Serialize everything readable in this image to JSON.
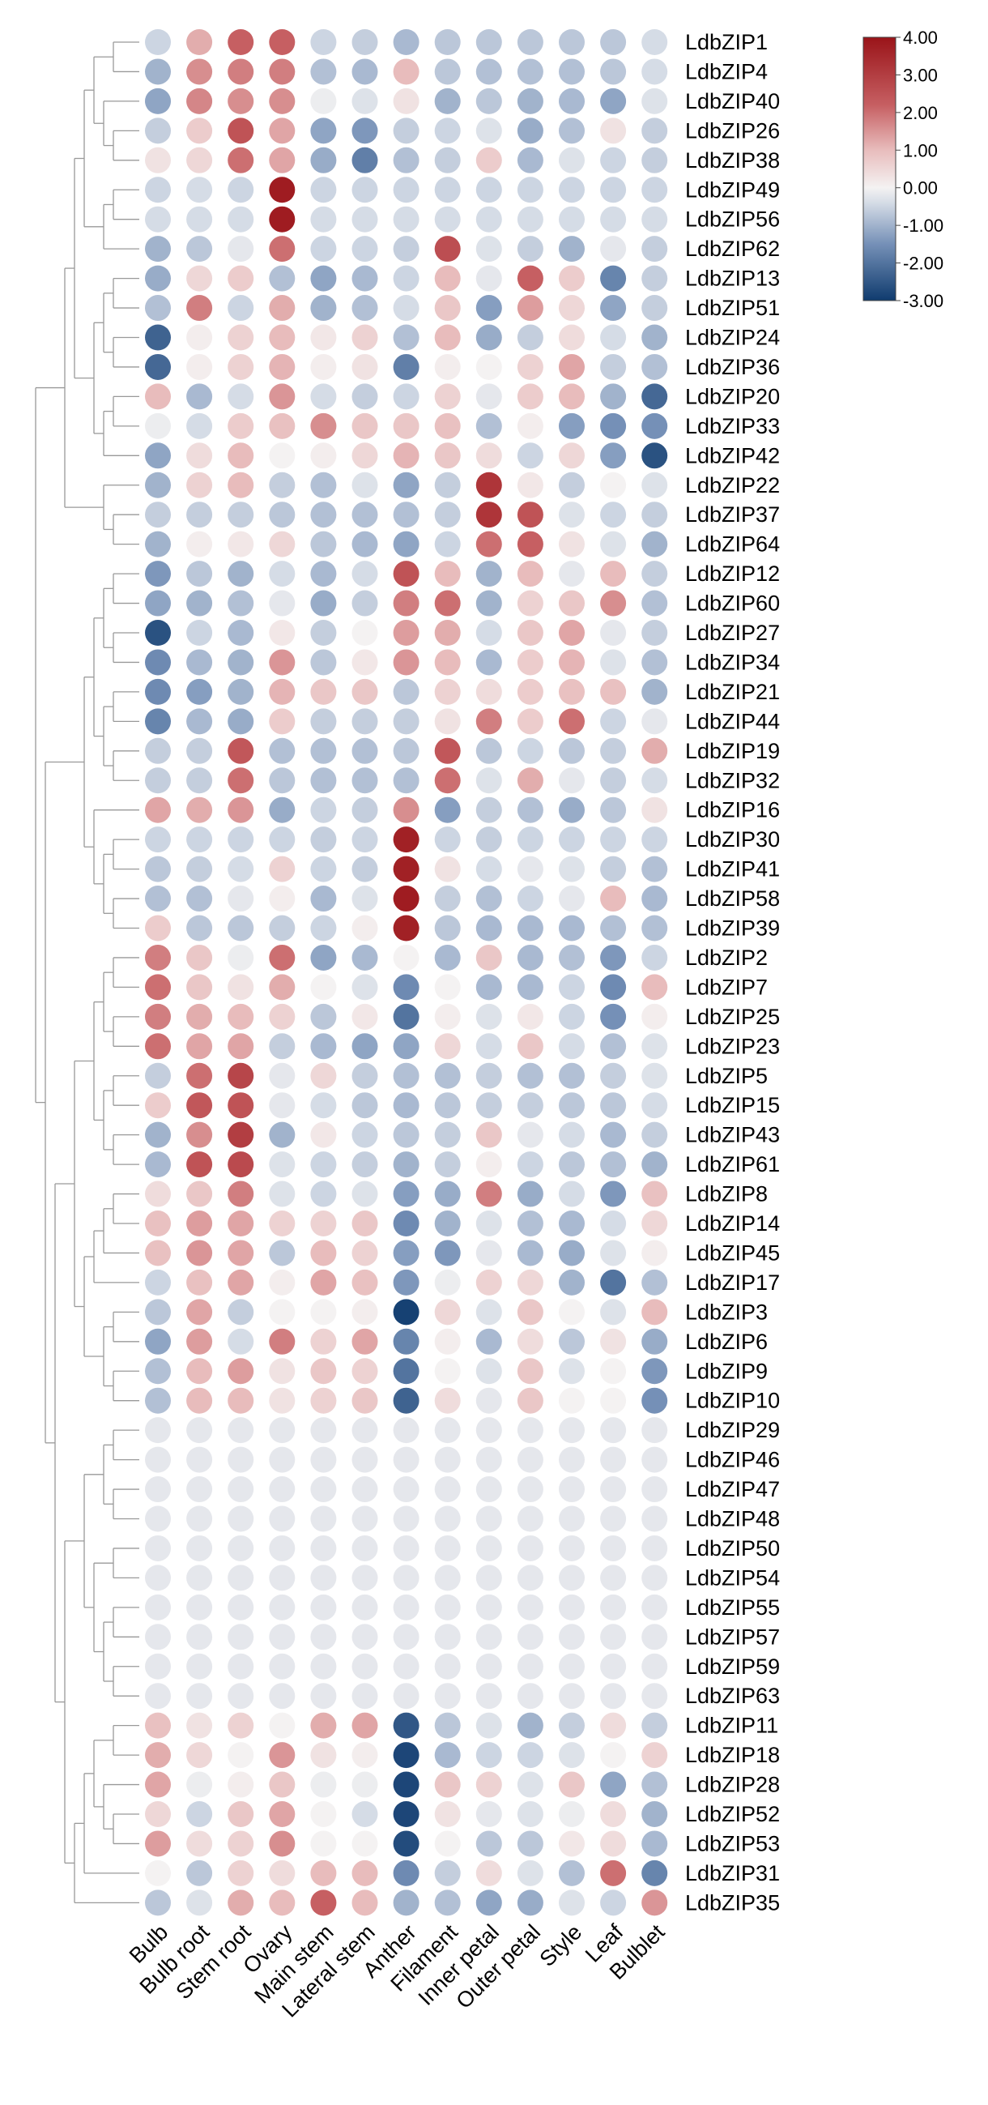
{
  "chart_data": {
    "type": "dot_heatmap",
    "rows": [
      "LdbZIP1",
      "LdbZIP4",
      "LdbZIP40",
      "LdbZIP26",
      "LdbZIP38",
      "LdbZIP49",
      "LdbZIP56",
      "LdbZIP62",
      "LdbZIP13",
      "LdbZIP51",
      "LdbZIP24",
      "LdbZIP36",
      "LdbZIP20",
      "LdbZIP33",
      "LdbZIP42",
      "LdbZIP22",
      "LdbZIP37",
      "LdbZIP64",
      "LdbZIP12",
      "LdbZIP60",
      "LdbZIP27",
      "LdbZIP34",
      "LdbZIP21",
      "LdbZIP44",
      "LdbZIP19",
      "LdbZIP32",
      "LdbZIP16",
      "LdbZIP30",
      "LdbZIP41",
      "LdbZIP58",
      "LdbZIP39",
      "LdbZIP2",
      "LdbZIP7",
      "LdbZIP25",
      "LdbZIP23",
      "LdbZIP5",
      "LdbZIP15",
      "LdbZIP43",
      "LdbZIP61",
      "LdbZIP8",
      "LdbZIP14",
      "LdbZIP45",
      "LdbZIP17",
      "LdbZIP3",
      "LdbZIP6",
      "LdbZIP9",
      "LdbZIP10",
      "LdbZIP29",
      "LdbZIP46",
      "LdbZIP47",
      "LdbZIP48",
      "LdbZIP50",
      "LdbZIP54",
      "LdbZIP55",
      "LdbZIP57",
      "LdbZIP59",
      "LdbZIP63",
      "LdbZIP11",
      "LdbZIP18",
      "LdbZIP28",
      "LdbZIP52",
      "LdbZIP53",
      "LdbZIP31",
      "LdbZIP35"
    ],
    "columns": [
      "Bulb",
      "Bulb root",
      "Stem root",
      "Ovary",
      "Main stem",
      "Lateral stem",
      "Anther",
      "Filament",
      "Inner petal",
      "Outer petal",
      "Style",
      "Leaf",
      "Bulblet"
    ],
    "values": [
      [
        -0.5,
        1.2,
        2.2,
        2.2,
        -0.5,
        -0.6,
        -0.9,
        -0.7,
        -0.7,
        -0.7,
        -0.7,
        -0.7,
        -0.4
      ],
      [
        -1.0,
        1.6,
        1.8,
        1.8,
        -0.8,
        -0.9,
        1.0,
        -0.7,
        -0.8,
        -0.8,
        -0.8,
        -0.7,
        -0.4
      ],
      [
        -1.2,
        1.7,
        1.6,
        1.6,
        -0.1,
        -0.3,
        0.3,
        -1.0,
        -0.7,
        -1.0,
        -0.9,
        -1.2,
        -0.3
      ],
      [
        -0.6,
        0.7,
        2.5,
        1.3,
        -1.2,
        -1.4,
        -0.6,
        -0.5,
        -0.3,
        -1.1,
        -0.8,
        0.3,
        -0.6
      ],
      [
        0.3,
        0.5,
        2.0,
        1.3,
        -1.1,
        -1.8,
        -0.8,
        -0.6,
        0.7,
        -0.9,
        -0.3,
        -0.5,
        -0.6
      ],
      [
        -0.5,
        -0.4,
        -0.5,
        3.8,
        -0.5,
        -0.5,
        -0.5,
        -0.5,
        -0.5,
        -0.5,
        -0.5,
        -0.5,
        -0.5
      ],
      [
        -0.4,
        -0.4,
        -0.4,
        3.8,
        -0.4,
        -0.4,
        -0.4,
        -0.4,
        -0.4,
        -0.4,
        -0.4,
        -0.4,
        -0.4
      ],
      [
        -1.0,
        -0.7,
        -0.2,
        2.0,
        -0.5,
        -0.5,
        -0.6,
        2.6,
        -0.3,
        -0.6,
        -1.0,
        -0.2,
        -0.6
      ],
      [
        -1.1,
        0.5,
        0.7,
        -0.8,
        -1.2,
        -0.9,
        -0.5,
        1.0,
        -0.2,
        2.2,
        0.7,
        -1.7,
        -0.6
      ],
      [
        -0.8,
        1.8,
        -0.5,
        1.2,
        -1.0,
        -0.8,
        -0.4,
        0.8,
        -1.3,
        1.4,
        0.5,
        -1.2,
        -0.6
      ],
      [
        -2.3,
        0.1,
        0.6,
        1.0,
        0.2,
        0.6,
        -0.8,
        1.0,
        -1.1,
        -0.6,
        0.4,
        -0.4,
        -1.0
      ],
      [
        -2.2,
        0.1,
        0.6,
        1.1,
        0.1,
        0.3,
        -1.8,
        0.1,
        0.0,
        0.6,
        1.3,
        -0.6,
        -0.8
      ],
      [
        1.0,
        -0.9,
        -0.4,
        1.5,
        -0.4,
        -0.6,
        -0.5,
        0.6,
        -0.2,
        0.7,
        1.0,
        -1.0,
        -2.2
      ],
      [
        -0.1,
        -0.4,
        0.7,
        0.9,
        1.6,
        0.8,
        0.8,
        0.9,
        -0.8,
        0.1,
        -1.3,
        -1.5,
        -1.5
      ],
      [
        -1.2,
        0.4,
        1.0,
        0.0,
        0.1,
        0.5,
        1.1,
        0.8,
        0.4,
        -0.5,
        0.5,
        -1.3,
        -2.6
      ],
      [
        -1.0,
        0.6,
        1.0,
        -0.6,
        -0.8,
        -0.3,
        -1.2,
        -0.6,
        3.2,
        0.2,
        -0.6,
        0.0,
        -0.3
      ],
      [
        -0.6,
        -0.6,
        -0.6,
        -0.7,
        -0.8,
        -0.8,
        -0.8,
        -0.6,
        3.2,
        2.5,
        -0.3,
        -0.5,
        -0.6
      ],
      [
        -1.0,
        0.1,
        0.2,
        0.5,
        -0.7,
        -0.9,
        -1.2,
        -0.5,
        2.0,
        2.2,
        0.3,
        -0.3,
        -1.0
      ],
      [
        -1.4,
        -0.7,
        -1.0,
        -0.4,
        -0.9,
        -0.4,
        2.5,
        1.0,
        -1.0,
        1.0,
        -0.2,
        1.0,
        -0.6
      ],
      [
        -1.2,
        -1.0,
        -0.8,
        -0.2,
        -1.1,
        -0.6,
        1.8,
        2.0,
        -1.0,
        0.6,
        0.8,
        1.6,
        -0.8
      ],
      [
        -2.6,
        -0.5,
        -0.9,
        0.2,
        -0.6,
        0.0,
        1.4,
        1.2,
        -0.4,
        0.8,
        1.3,
        -0.2,
        -0.6
      ],
      [
        -1.6,
        -0.9,
        -1.0,
        1.5,
        -0.7,
        0.2,
        1.5,
        1.0,
        -0.9,
        0.7,
        1.1,
        -0.3,
        -0.8
      ],
      [
        -1.6,
        -1.3,
        -1.0,
        1.1,
        0.8,
        0.8,
        -0.7,
        0.6,
        0.4,
        0.7,
        0.9,
        0.9,
        -1.0
      ],
      [
        -1.7,
        -0.9,
        -1.1,
        0.7,
        -0.6,
        -0.6,
        -0.6,
        0.3,
        1.8,
        0.7,
        2.0,
        -0.5,
        -0.2
      ],
      [
        -0.6,
        -0.6,
        2.4,
        -0.8,
        -0.8,
        -0.8,
        -0.7,
        2.4,
        -0.7,
        -0.5,
        -0.7,
        -0.6,
        1.2
      ],
      [
        -0.6,
        -0.6,
        2.0,
        -0.7,
        -0.8,
        -0.8,
        -0.8,
        2.0,
        -0.3,
        1.2,
        -0.2,
        -0.6,
        -0.4
      ],
      [
        1.3,
        1.2,
        1.5,
        -1.1,
        -0.5,
        -0.6,
        1.6,
        -1.3,
        -0.6,
        -0.8,
        -1.1,
        -0.7,
        0.3
      ],
      [
        -0.5,
        -0.5,
        -0.5,
        -0.5,
        -0.6,
        -0.5,
        3.7,
        -0.5,
        -0.6,
        -0.5,
        -0.5,
        -0.5,
        -0.5
      ],
      [
        -0.7,
        -0.6,
        -0.4,
        0.6,
        -0.5,
        -0.6,
        3.7,
        0.3,
        -0.4,
        -0.2,
        -0.3,
        -0.6,
        -0.8
      ],
      [
        -0.8,
        -0.8,
        -0.2,
        0.1,
        -0.9,
        -0.3,
        3.8,
        -0.6,
        -0.8,
        -0.5,
        -0.2,
        1.0,
        -0.9
      ],
      [
        0.7,
        -0.7,
        -0.7,
        -0.6,
        -0.5,
        0.1,
        3.7,
        -0.7,
        -0.9,
        -0.9,
        -0.9,
        -0.8,
        -0.8
      ],
      [
        1.8,
        0.8,
        -0.1,
        2.0,
        -1.2,
        -0.9,
        0.0,
        -0.9,
        0.8,
        -0.9,
        -0.8,
        -1.4,
        -0.5
      ],
      [
        2.0,
        0.8,
        0.3,
        1.2,
        0.0,
        -0.3,
        -1.6,
        0.0,
        -0.9,
        -0.9,
        -0.5,
        -1.6,
        1.0
      ],
      [
        1.8,
        1.2,
        1.0,
        0.6,
        -0.7,
        0.2,
        -2.0,
        0.1,
        -0.3,
        0.2,
        -0.5,
        -1.5,
        0.1
      ],
      [
        2.0,
        1.3,
        1.3,
        -0.6,
        -0.9,
        -1.2,
        -1.2,
        0.5,
        -0.4,
        0.8,
        -0.4,
        -0.8,
        -0.3
      ],
      [
        -0.6,
        2.0,
        2.8,
        -0.2,
        0.5,
        -0.6,
        -0.8,
        -0.8,
        -0.6,
        -0.8,
        -0.8,
        -0.6,
        -0.3
      ],
      [
        0.7,
        2.4,
        2.5,
        -0.2,
        -0.4,
        -0.7,
        -0.9,
        -0.7,
        -0.6,
        -0.6,
        -0.7,
        -0.7,
        -0.4
      ],
      [
        -1.0,
        1.6,
        3.0,
        -1.0,
        0.2,
        -0.5,
        -0.7,
        -0.6,
        0.8,
        -0.2,
        -0.4,
        -0.9,
        -0.6
      ],
      [
        -0.9,
        2.5,
        2.7,
        -0.3,
        -0.5,
        -0.6,
        -1.0,
        -0.6,
        0.1,
        -0.5,
        -0.7,
        -0.8,
        -1.0
      ],
      [
        0.4,
        0.8,
        1.8,
        -0.3,
        -0.5,
        -0.3,
        -1.3,
        -1.1,
        1.8,
        -1.1,
        -0.4,
        -1.4,
        0.9
      ],
      [
        0.9,
        1.4,
        1.3,
        0.6,
        0.6,
        0.8,
        -1.6,
        -1.0,
        -0.3,
        -0.8,
        -0.9,
        -0.4,
        0.5
      ],
      [
        0.9,
        1.5,
        1.3,
        -0.7,
        1.0,
        0.6,
        -1.3,
        -1.4,
        -0.2,
        -0.9,
        -1.1,
        -0.3,
        0.1
      ],
      [
        -0.5,
        0.9,
        1.3,
        0.1,
        1.3,
        0.9,
        -1.4,
        -0.1,
        0.6,
        0.5,
        -1.0,
        -2.0,
        -0.8
      ],
      [
        -0.7,
        1.3,
        -0.6,
        0.0,
        0.0,
        0.1,
        -2.9,
        0.5,
        -0.3,
        0.8,
        0.0,
        -0.3,
        1.0
      ],
      [
        -1.2,
        1.4,
        -0.4,
        1.8,
        0.6,
        1.3,
        -1.7,
        0.1,
        -0.9,
        0.4,
        -0.7,
        0.3,
        -1.1
      ],
      [
        -0.8,
        1.0,
        1.4,
        0.3,
        0.8,
        0.6,
        -2.0,
        0.0,
        -0.3,
        0.8,
        -0.3,
        0.0,
        -1.4
      ],
      [
        -0.8,
        1.0,
        1.0,
        0.3,
        0.6,
        0.8,
        -2.3,
        0.4,
        -0.2,
        0.8,
        0.0,
        0.0,
        -1.5
      ],
      [
        -0.2,
        -0.2,
        -0.2,
        -0.2,
        -0.2,
        -0.2,
        -0.2,
        -0.2,
        -0.2,
        -0.2,
        -0.2,
        -0.2,
        -0.2
      ],
      [
        -0.2,
        -0.2,
        -0.2,
        -0.2,
        -0.2,
        -0.2,
        -0.2,
        -0.2,
        -0.2,
        -0.2,
        -0.2,
        -0.2,
        -0.2
      ],
      [
        -0.2,
        -0.2,
        -0.2,
        -0.2,
        -0.2,
        -0.2,
        -0.2,
        -0.2,
        -0.2,
        -0.2,
        -0.2,
        -0.2,
        -0.2
      ],
      [
        -0.2,
        -0.2,
        -0.2,
        -0.2,
        -0.2,
        -0.2,
        -0.2,
        -0.2,
        -0.2,
        -0.2,
        -0.2,
        -0.2,
        -0.2
      ],
      [
        -0.2,
        -0.2,
        -0.2,
        -0.2,
        -0.2,
        -0.2,
        -0.2,
        -0.2,
        -0.2,
        -0.2,
        -0.2,
        -0.2,
        -0.2
      ],
      [
        -0.2,
        -0.2,
        -0.2,
        -0.2,
        -0.2,
        -0.2,
        -0.2,
        -0.2,
        -0.2,
        -0.2,
        -0.2,
        -0.2,
        -0.2
      ],
      [
        -0.2,
        -0.2,
        -0.2,
        -0.2,
        -0.2,
        -0.2,
        -0.2,
        -0.2,
        -0.2,
        -0.2,
        -0.2,
        -0.2,
        -0.2
      ],
      [
        -0.2,
        -0.2,
        -0.2,
        -0.2,
        -0.2,
        -0.2,
        -0.2,
        -0.2,
        -0.2,
        -0.2,
        -0.2,
        -0.2,
        -0.2
      ],
      [
        -0.2,
        -0.2,
        -0.2,
        -0.2,
        -0.2,
        -0.2,
        -0.2,
        -0.2,
        -0.2,
        -0.2,
        -0.2,
        -0.2,
        -0.2
      ],
      [
        -0.2,
        -0.2,
        -0.2,
        -0.2,
        -0.2,
        -0.2,
        -0.2,
        -0.2,
        -0.2,
        -0.2,
        -0.2,
        -0.2,
        -0.2
      ],
      [
        0.9,
        0.3,
        0.6,
        0.0,
        1.2,
        1.3,
        -2.5,
        -0.7,
        -0.3,
        -1.0,
        -0.6,
        0.4,
        -0.6
      ],
      [
        1.2,
        0.5,
        0.0,
        1.5,
        0.3,
        0.1,
        -2.8,
        -0.9,
        -0.5,
        -0.5,
        -0.3,
        0.0,
        0.6
      ],
      [
        1.3,
        -0.1,
        0.1,
        0.8,
        -0.1,
        -0.1,
        -2.8,
        0.8,
        0.6,
        -0.3,
        0.8,
        -1.2,
        -0.8
      ],
      [
        0.5,
        -0.5,
        0.8,
        1.3,
        0.0,
        -0.4,
        -2.8,
        0.3,
        -0.2,
        -0.3,
        -0.1,
        0.4,
        -1.0
      ],
      [
        1.4,
        0.4,
        0.6,
        1.6,
        0.0,
        0.0,
        -2.7,
        0.0,
        -0.7,
        -0.7,
        0.2,
        0.4,
        -0.9
      ],
      [
        0.0,
        -0.7,
        0.6,
        0.4,
        1.0,
        1.0,
        -1.6,
        -0.6,
        0.4,
        -0.3,
        -0.8,
        2.0,
        -1.7
      ],
      [
        -0.7,
        -0.3,
        1.2,
        1.0,
        2.2,
        1.0,
        -1.0,
        -0.8,
        -1.2,
        -1.1,
        -0.3,
        -0.5,
        1.5
      ]
    ],
    "clim": [
      -3,
      4
    ],
    "cticks": [
      {
        "value": 4,
        "label": "4.00"
      },
      {
        "value": 3,
        "label": "3.00"
      },
      {
        "value": 2,
        "label": "2.00"
      },
      {
        "value": 1,
        "label": "1.00"
      },
      {
        "value": 0,
        "label": "0.00"
      },
      {
        "value": -1,
        "label": "-1.00"
      },
      {
        "value": -2,
        "label": "-2.00"
      },
      {
        "value": -3,
        "label": "-3.00"
      }
    ],
    "colorscale": [
      [
        -3,
        "#0f3b6e"
      ],
      [
        -1.5,
        "#7590b7"
      ],
      [
        -0.4,
        "#d5dce6"
      ],
      [
        0,
        "#f4f2f2"
      ],
      [
        1,
        "#e8bcbc"
      ],
      [
        2.2,
        "#c65f62"
      ],
      [
        4,
        "#9a1419"
      ]
    ]
  }
}
